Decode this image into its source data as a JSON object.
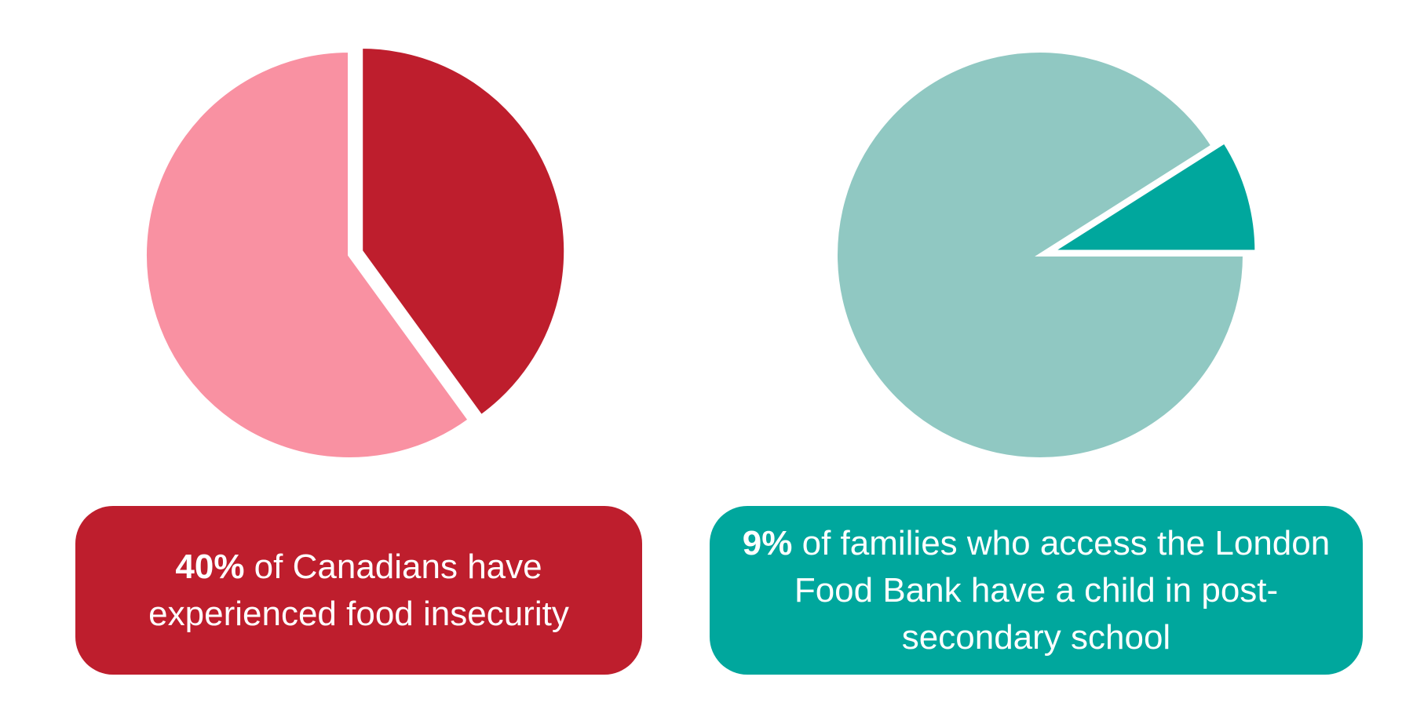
{
  "chart_data": [
    {
      "type": "pie",
      "values": [
        40,
        60
      ],
      "highlight_index": 0,
      "colors": [
        "#be1e2d",
        "#f991a2"
      ],
      "caption": {
        "percent": "40%",
        "text": " of Canadians have experienced food insecurity"
      },
      "caption_color": "#be1e2d"
    },
    {
      "type": "pie",
      "values": [
        9,
        91
      ],
      "highlight_index": 0,
      "colors": [
        "#00a79d",
        "#90c8c2"
      ],
      "caption": {
        "percent": "9%",
        "text": " of families who access the London Food Bank have a child in post-secondary school"
      },
      "caption_color": "#00a79d"
    }
  ]
}
